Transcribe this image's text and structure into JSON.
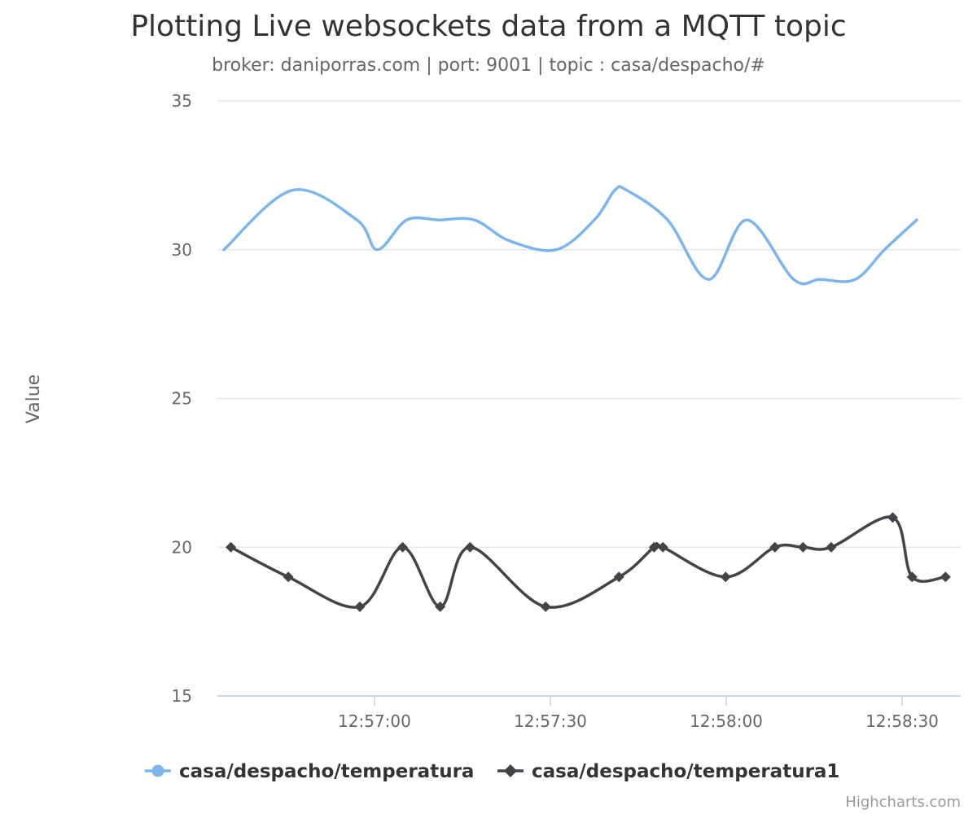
{
  "chart_data": {
    "type": "line",
    "title": "Plotting Live websockets data from a MQTT topic",
    "subtitle": "broker: daniporras.com | port: 9001 | topic : casa/despacho/#",
    "ylabel": "Value",
    "xlabel": "",
    "ylim": [
      15,
      35
    ],
    "y_ticks": [
      15,
      20,
      25,
      30,
      35
    ],
    "x_ticks": [
      "12:57:00",
      "12:57:30",
      "12:58:00",
      "12:58:30"
    ],
    "x_unit": "seconds after 12:56:30",
    "xlim": [
      3.2,
      130
    ],
    "grid": true,
    "legend_position": "bottom",
    "series": [
      {
        "name": "casa/despacho/temperatura",
        "color": "#7cb5ec",
        "marker": "none",
        "x": [
          4.3,
          16,
          27,
          30.5,
          35.5,
          41,
          47,
          53,
          61,
          67.5,
          71,
          73,
          80,
          87,
          93.5,
          101.5,
          106,
          112,
          117,
          122.5
        ],
        "y": [
          30,
          32,
          31,
          30,
          31,
          31,
          31,
          30.3,
          30,
          31,
          32,
          32,
          31,
          29,
          31,
          29,
          29,
          29,
          30,
          31
        ]
      },
      {
        "name": "casa/despacho/temperatura1",
        "color": "#434348",
        "marker": "diamond",
        "x": [
          5.5,
          15.3,
          27.5,
          34.8,
          41.2,
          46.3,
          59.2,
          71.7,
          77.7,
          79.2,
          89.9,
          98.3,
          103.1,
          107.9,
          118.4,
          121.7,
          127.4
        ],
        "y": [
          20,
          19,
          18,
          20,
          18,
          20,
          18,
          19,
          20,
          20,
          19,
          20,
          20,
          20,
          21,
          19,
          19
        ]
      }
    ]
  },
  "credits": "Highcharts.com"
}
